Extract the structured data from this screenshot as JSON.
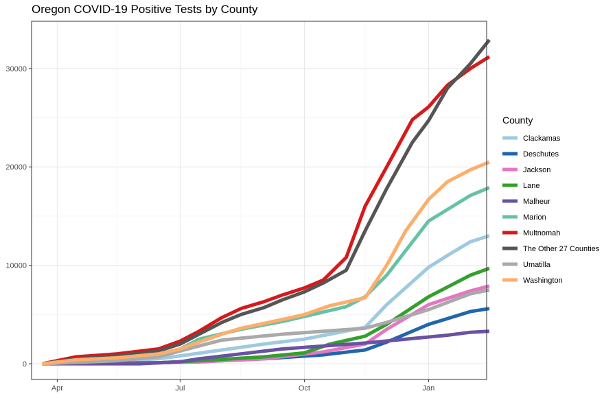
{
  "chart_data": {
    "type": "line",
    "title": "Oregon COVID-19 Positive Tests by County",
    "xlabel": "",
    "ylabel": "",
    "x_ticks": [
      "Apr",
      "Jul",
      "Oct",
      "Jan"
    ],
    "y_ticks": [
      0,
      10000,
      20000,
      30000
    ],
    "xlim": [
      "2020-03-13",
      "2021-02-13"
    ],
    "ylim": [
      -1600,
      34800
    ],
    "grid": true,
    "legend": {
      "title": "County",
      "position": "right"
    },
    "series": [
      {
        "name": "Clackamas",
        "color": "#9ecae1",
        "values": [
          [
            "2020-03-21",
            0
          ],
          [
            "2020-04-15",
            150
          ],
          [
            "2020-05-15",
            300
          ],
          [
            "2020-06-15",
            500
          ],
          [
            "2020-07-01",
            800
          ],
          [
            "2020-08-01",
            1400
          ],
          [
            "2020-09-01",
            2000
          ],
          [
            "2020-10-01",
            2500
          ],
          [
            "2020-10-20",
            3000
          ],
          [
            "2020-11-15",
            3700
          ],
          [
            "2020-12-01",
            6000
          ],
          [
            "2021-01-01",
            9800
          ],
          [
            "2021-01-15",
            11000
          ],
          [
            "2021-02-01",
            12400
          ],
          [
            "2021-02-15",
            13000
          ]
        ]
      },
      {
        "name": "Deschutes",
        "color": "#2166ac",
        "values": [
          [
            "2020-03-21",
            0
          ],
          [
            "2020-06-15",
            100
          ],
          [
            "2020-07-15",
            200
          ],
          [
            "2020-09-01",
            500
          ],
          [
            "2020-10-15",
            900
          ],
          [
            "2020-11-15",
            1400
          ],
          [
            "2020-12-01",
            2200
          ],
          [
            "2021-01-01",
            4000
          ],
          [
            "2021-02-01",
            5300
          ],
          [
            "2021-02-15",
            5600
          ]
        ]
      },
      {
        "name": "Jackson",
        "color": "#e377c2",
        "values": [
          [
            "2020-03-21",
            0
          ],
          [
            "2020-06-15",
            100
          ],
          [
            "2020-07-15",
            200
          ],
          [
            "2020-09-01",
            500
          ],
          [
            "2020-10-15",
            1200
          ],
          [
            "2020-11-15",
            2000
          ],
          [
            "2020-12-01",
            3500
          ],
          [
            "2021-01-01",
            6000
          ],
          [
            "2021-02-01",
            7400
          ],
          [
            "2021-02-15",
            7900
          ]
        ]
      },
      {
        "name": "Lane",
        "color": "#33a02c",
        "values": [
          [
            "2020-03-21",
            0
          ],
          [
            "2020-06-15",
            100
          ],
          [
            "2020-07-15",
            300
          ],
          [
            "2020-09-01",
            700
          ],
          [
            "2020-10-01",
            1100
          ],
          [
            "2020-10-20",
            2000
          ],
          [
            "2020-11-15",
            2800
          ],
          [
            "2020-12-01",
            4000
          ],
          [
            "2021-01-01",
            6800
          ],
          [
            "2021-02-01",
            9000
          ],
          [
            "2021-02-15",
            9700
          ]
        ]
      },
      {
        "name": "Malheur",
        "color": "#6a51a3",
        "values": [
          [
            "2020-03-21",
            0
          ],
          [
            "2020-06-01",
            0
          ],
          [
            "2020-07-01",
            200
          ],
          [
            "2020-07-15",
            500
          ],
          [
            "2020-08-15",
            1000
          ],
          [
            "2020-09-15",
            1500
          ],
          [
            "2020-10-15",
            1800
          ],
          [
            "2020-11-15",
            2100
          ],
          [
            "2020-12-15",
            2500
          ],
          [
            "2021-01-15",
            2900
          ],
          [
            "2021-02-01",
            3200
          ],
          [
            "2021-02-15",
            3300
          ]
        ]
      },
      {
        "name": "Marion",
        "color": "#66c2a5",
        "values": [
          [
            "2020-03-21",
            0
          ],
          [
            "2020-05-01",
            300
          ],
          [
            "2020-06-15",
            800
          ],
          [
            "2020-07-01",
            1500
          ],
          [
            "2020-07-15",
            2500
          ],
          [
            "2020-08-15",
            3500
          ],
          [
            "2020-09-15",
            4300
          ],
          [
            "2020-10-01",
            4800
          ],
          [
            "2020-11-01",
            5800
          ],
          [
            "2020-11-15",
            6800
          ],
          [
            "2020-12-01",
            9000
          ],
          [
            "2021-01-01",
            14500
          ],
          [
            "2021-02-01",
            17100
          ],
          [
            "2021-02-15",
            17900
          ]
        ]
      },
      {
        "name": "Multnomah",
        "color": "#d7191c",
        "values": [
          [
            "2020-03-21",
            0
          ],
          [
            "2020-04-15",
            700
          ],
          [
            "2020-05-15",
            1000
          ],
          [
            "2020-06-15",
            1500
          ],
          [
            "2020-07-01",
            2300
          ],
          [
            "2020-07-15",
            3300
          ],
          [
            "2020-08-01",
            4700
          ],
          [
            "2020-08-15",
            5600
          ],
          [
            "2020-09-01",
            6300
          ],
          [
            "2020-09-15",
            7000
          ],
          [
            "2020-10-01",
            7700
          ],
          [
            "2020-10-15",
            8500
          ],
          [
            "2020-11-01",
            10800
          ],
          [
            "2020-11-15",
            16000
          ],
          [
            "2020-12-01",
            20000
          ],
          [
            "2020-12-20",
            24800
          ],
          [
            "2021-01-01",
            26100
          ],
          [
            "2021-01-15",
            28300
          ],
          [
            "2021-02-01",
            30000
          ],
          [
            "2021-02-15",
            31200
          ]
        ]
      },
      {
        "name": "The Other 27 Counties",
        "color": "#555555",
        "values": [
          [
            "2020-03-21",
            0
          ],
          [
            "2020-04-15",
            500
          ],
          [
            "2020-05-15",
            800
          ],
          [
            "2020-06-15",
            1300
          ],
          [
            "2020-07-01",
            2000
          ],
          [
            "2020-07-15",
            3000
          ],
          [
            "2020-08-01",
            4200
          ],
          [
            "2020-08-15",
            5000
          ],
          [
            "2020-09-01",
            5700
          ],
          [
            "2020-09-15",
            6500
          ],
          [
            "2020-10-01",
            7300
          ],
          [
            "2020-10-15",
            8200
          ],
          [
            "2020-11-01",
            9500
          ],
          [
            "2020-11-15",
            13500
          ],
          [
            "2020-12-01",
            17800
          ],
          [
            "2020-12-20",
            22500
          ],
          [
            "2021-01-01",
            24700
          ],
          [
            "2021-01-15",
            28000
          ],
          [
            "2021-02-01",
            30500
          ],
          [
            "2021-02-15",
            32900
          ]
        ]
      },
      {
        "name": "Umatilla",
        "color": "#aaaaaa",
        "values": [
          [
            "2020-03-21",
            0
          ],
          [
            "2020-05-15",
            300
          ],
          [
            "2020-06-15",
            700
          ],
          [
            "2020-07-15",
            1800
          ],
          [
            "2020-08-01",
            2400
          ],
          [
            "2020-08-15",
            2600
          ],
          [
            "2020-09-15",
            3000
          ],
          [
            "2020-10-15",
            3300
          ],
          [
            "2020-11-15",
            3600
          ],
          [
            "2020-12-01",
            4200
          ],
          [
            "2021-01-01",
            5500
          ],
          [
            "2021-02-01",
            7100
          ],
          [
            "2021-02-15",
            7500
          ]
        ]
      },
      {
        "name": "Washington",
        "color": "#fdae6b",
        "values": [
          [
            "2020-03-21",
            0
          ],
          [
            "2020-04-15",
            400
          ],
          [
            "2020-05-15",
            600
          ],
          [
            "2020-06-15",
            1000
          ],
          [
            "2020-07-01",
            1500
          ],
          [
            "2020-07-15",
            2200
          ],
          [
            "2020-08-01",
            3000
          ],
          [
            "2020-08-15",
            3600
          ],
          [
            "2020-09-01",
            4100
          ],
          [
            "2020-09-15",
            4500
          ],
          [
            "2020-10-01",
            5000
          ],
          [
            "2020-10-20",
            5900
          ],
          [
            "2020-11-15",
            6700
          ],
          [
            "2020-12-01",
            10000
          ],
          [
            "2020-12-15",
            13500
          ],
          [
            "2021-01-01",
            16700
          ],
          [
            "2021-01-15",
            18500
          ],
          [
            "2021-02-01",
            19700
          ],
          [
            "2021-02-15",
            20500
          ]
        ]
      }
    ]
  }
}
